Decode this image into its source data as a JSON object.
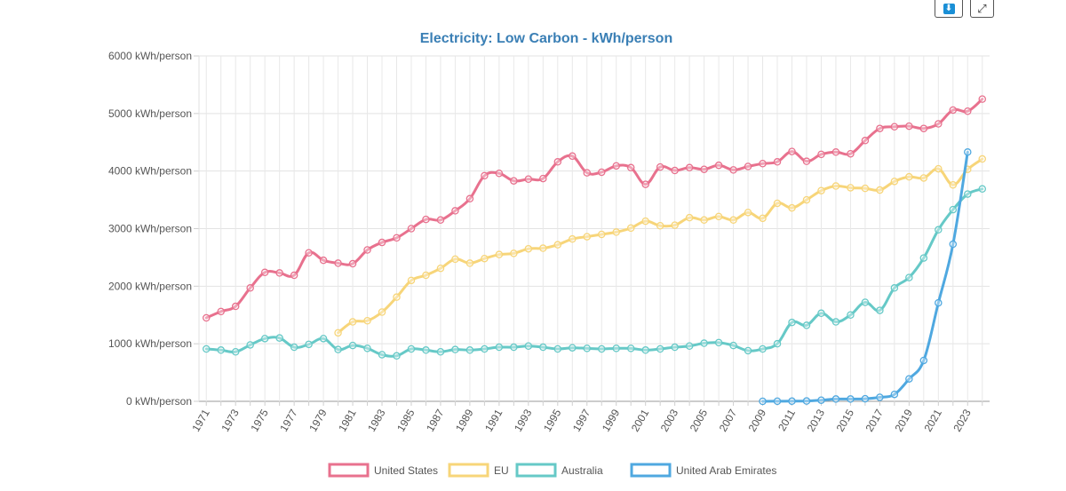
{
  "toolbar": {
    "download_icon": "download-icon",
    "download_glyph": "⬇",
    "expand_icon": "expand-icon",
    "expand_glyph": "⤢"
  },
  "chart_data": {
    "type": "line",
    "title": "Electricity: Low Carbon -  kWh/person",
    "xlabel": "",
    "ylabel": "",
    "ylim": [
      0,
      6000
    ],
    "y_ticks": [
      0,
      1000,
      2000,
      3000,
      4000,
      5000,
      6000
    ],
    "y_tick_suffix": " kWh/person",
    "x_tick_labels": [
      "1971",
      "1973",
      "1975",
      "1977",
      "1979",
      "1981",
      "1983",
      "1985",
      "1987",
      "1989",
      "1991",
      "1993",
      "1995",
      "1997",
      "1999",
      "2001",
      "2003",
      "2005",
      "2007",
      "2009",
      "2011",
      "2013",
      "2015",
      "2017",
      "2019",
      "2021",
      "2023"
    ],
    "grid": true,
    "legend": "bottom",
    "x": [
      1971,
      1972,
      1973,
      1974,
      1975,
      1976,
      1977,
      1978,
      1979,
      1980,
      1981,
      1982,
      1983,
      1984,
      1985,
      1986,
      1987,
      1988,
      1989,
      1990,
      1991,
      1992,
      1993,
      1994,
      1995,
      1996,
      1997,
      1998,
      1999,
      2000,
      2001,
      2002,
      2003,
      2004,
      2005,
      2006,
      2007,
      2008,
      2009,
      2010,
      2011,
      2012,
      2013,
      2014,
      2015,
      2016,
      2017,
      2018,
      2019,
      2020,
      2021,
      2022,
      2023,
      2024
    ],
    "series": [
      {
        "name": "United States",
        "color": "#e8718e",
        "values": [
          1450,
          1560,
          1650,
          1970,
          2240,
          2230,
          2190,
          2580,
          2450,
          2400,
          2390,
          2630,
          2760,
          2840,
          3000,
          3160,
          3150,
          3310,
          3520,
          3920,
          3960,
          3830,
          3860,
          3870,
          4160,
          4260,
          3970,
          3980,
          4090,
          4060,
          3770,
          4070,
          4010,
          4060,
          4030,
          4100,
          4020,
          4080,
          4130,
          4160,
          4340,
          4170,
          4290,
          4330,
          4300,
          4530,
          4740,
          4770,
          4780,
          4740,
          4820,
          5060,
          5040,
          5250
        ]
      },
      {
        "name": "EU",
        "color": "#f7d579",
        "values": [
          null,
          null,
          null,
          null,
          null,
          null,
          null,
          null,
          null,
          1190,
          1380,
          1400,
          1550,
          1810,
          2100,
          2190,
          2310,
          2470,
          2400,
          2480,
          2550,
          2570,
          2650,
          2660,
          2720,
          2820,
          2860,
          2900,
          2940,
          3010,
          3130,
          3050,
          3060,
          3190,
          3150,
          3210,
          3150,
          3280,
          3180,
          3440,
          3360,
          3500,
          3660,
          3740,
          3710,
          3700,
          3670,
          3820,
          3900,
          3880,
          4040,
          3760,
          4030,
          4210
        ]
      },
      {
        "name": "Australia",
        "color": "#66c9c7",
        "values": [
          910,
          890,
          860,
          980,
          1090,
          1100,
          940,
          990,
          1090,
          900,
          970,
          920,
          810,
          790,
          910,
          890,
          860,
          900,
          890,
          910,
          940,
          940,
          960,
          940,
          910,
          930,
          920,
          910,
          920,
          920,
          890,
          910,
          940,
          960,
          1010,
          1020,
          970,
          880,
          910,
          1000,
          1370,
          1320,
          1530,
          1380,
          1500,
          1720,
          1580,
          1970,
          2150,
          2490,
          2980,
          3330,
          3600,
          3690
        ]
      },
      {
        "name": "United Arab Emirates",
        "color": "#4fa8e0",
        "values": [
          null,
          null,
          null,
          null,
          null,
          null,
          null,
          null,
          null,
          null,
          null,
          null,
          null,
          null,
          null,
          null,
          null,
          null,
          null,
          null,
          null,
          null,
          null,
          null,
          null,
          null,
          null,
          null,
          null,
          null,
          null,
          null,
          null,
          null,
          null,
          null,
          null,
          null,
          0,
          2,
          3,
          5,
          20,
          40,
          40,
          45,
          70,
          120,
          390,
          710,
          1710,
          2730,
          4330,
          null
        ]
      }
    ]
  }
}
